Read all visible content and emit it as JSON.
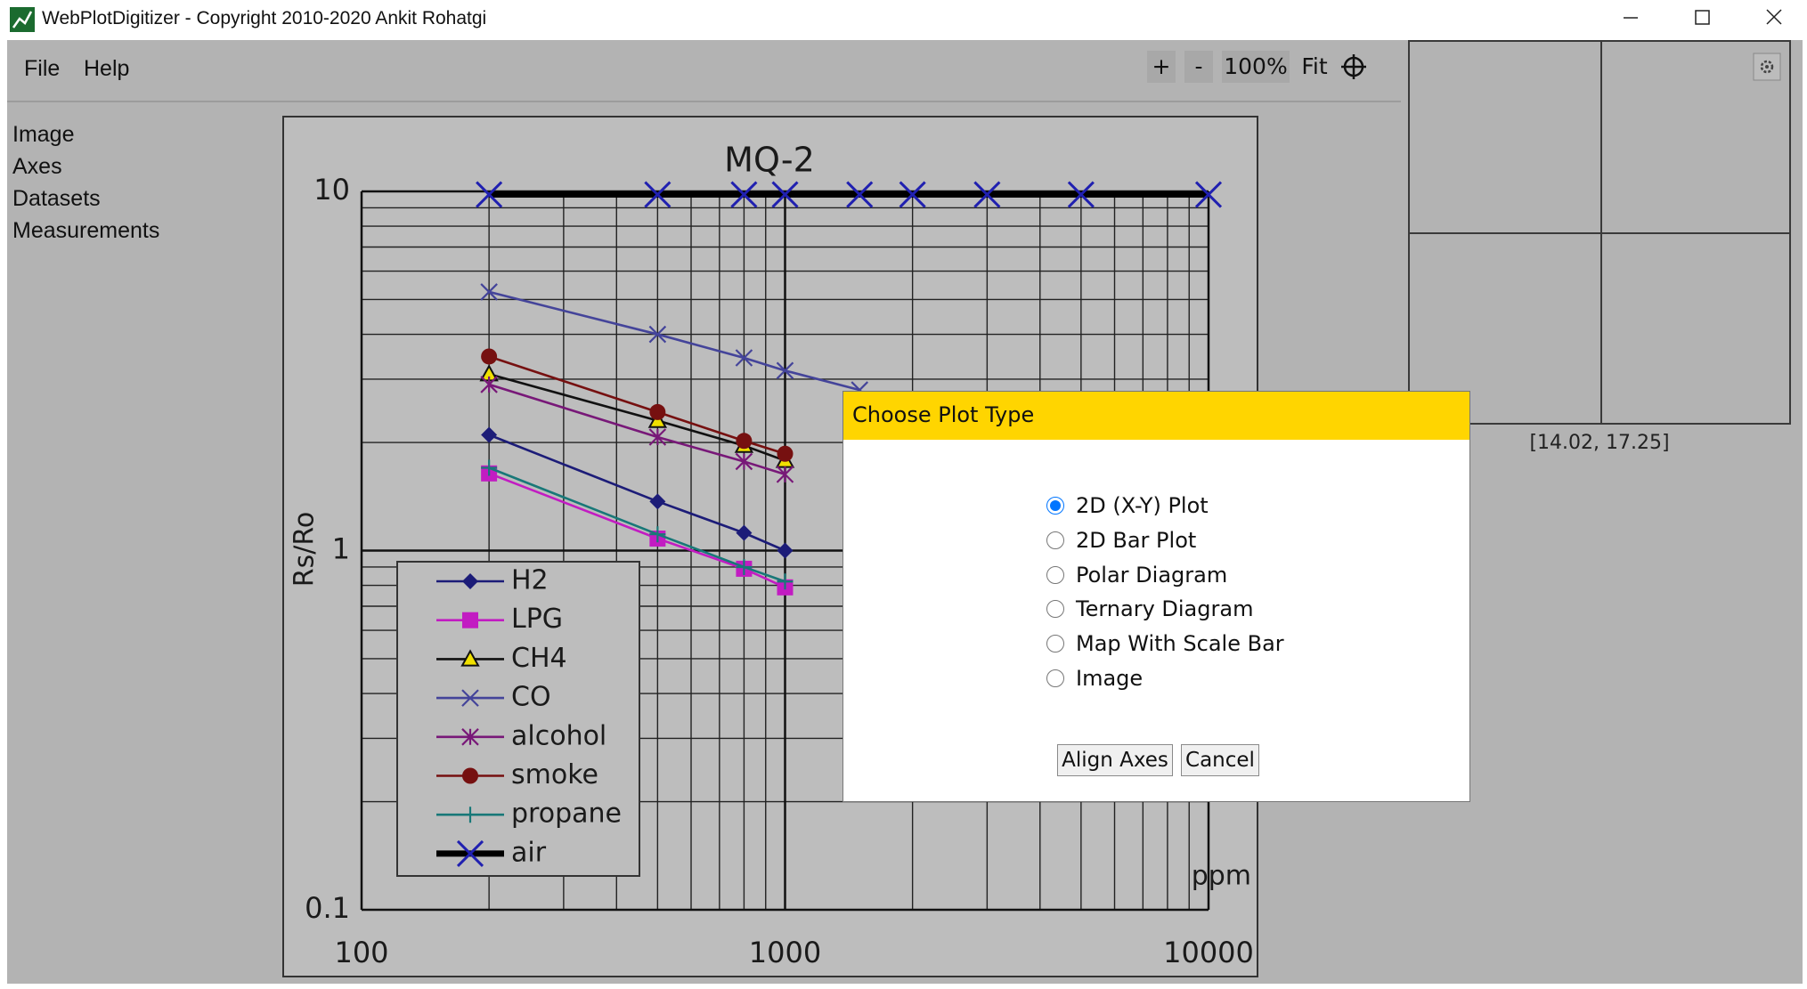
{
  "window": {
    "title": "WebPlotDigitizer - Copyright 2010-2020 Ankit Rohatgi"
  },
  "menu": [
    "File",
    "Help"
  ],
  "toolbar": [
    "+",
    "-",
    "100%",
    "Fit"
  ],
  "sidebar": [
    "Image",
    "Axes",
    "Datasets",
    "Measurements"
  ],
  "zoom_panel": {
    "coordinates": "[14.02, 17.25]"
  },
  "chart_data": {
    "type": "line",
    "title": "MQ-2",
    "y_label": "Rs/Ro",
    "x_label": "ppm",
    "xlog": true,
    "ylog": true,
    "grid": true,
    "xlim": [
      100,
      10000
    ],
    "xticks": [
      100,
      1000,
      10000
    ],
    "ylim": [
      0.1,
      10
    ],
    "yticks": [
      0.1,
      1,
      10
    ],
    "x": [
      200,
      500,
      800,
      1000,
      1500,
      2000,
      3000,
      5000,
      10000
    ],
    "series": [
      {
        "name": "H2",
        "color": "#1c1c78",
        "marker": "diamond",
        "values": [
          2.1,
          1.37,
          1.12,
          1.0,
          null,
          null,
          null,
          null,
          null
        ]
      },
      {
        "name": "LPG",
        "color": "#c21cc2",
        "marker": "square",
        "values": [
          1.64,
          1.08,
          0.89,
          0.79,
          null,
          null,
          null,
          null,
          null
        ]
      },
      {
        "name": "CH4",
        "color": "#111111",
        "marker": "triangle",
        "values": [
          3.1,
          2.3,
          1.96,
          1.78,
          null,
          null,
          null,
          null,
          null
        ]
      },
      {
        "name": "CO",
        "color": "#44449a",
        "marker": "x",
        "values": [
          5.25,
          4.0,
          3.44,
          3.17,
          2.8,
          null,
          null,
          null,
          null
        ]
      },
      {
        "name": "alcohol",
        "color": "#781878",
        "marker": "asterisk",
        "values": [
          2.9,
          2.07,
          1.77,
          1.63,
          null,
          null,
          null,
          null,
          null
        ]
      },
      {
        "name": "smoke",
        "color": "#761010",
        "marker": "circle",
        "values": [
          3.47,
          2.43,
          2.02,
          1.86,
          null,
          null,
          null,
          null,
          null
        ]
      },
      {
        "name": "propane",
        "color": "#187878",
        "marker": "plus",
        "values": [
          1.7,
          1.11,
          0.9,
          0.82,
          null,
          null,
          null,
          null,
          null
        ]
      },
      {
        "name": "air",
        "color": "#2020b0",
        "line_color": "#000000",
        "line_width": 7,
        "marker": "x",
        "values": [
          9.8,
          9.8,
          9.8,
          9.8,
          9.8,
          9.8,
          9.8,
          9.8,
          9.8
        ]
      }
    ]
  },
  "dialog": {
    "title": "Choose Plot Type",
    "options": [
      "2D (X-Y) Plot",
      "2D Bar Plot",
      "Polar Diagram",
      "Ternary Diagram",
      "Map With Scale Bar",
      "Image"
    ],
    "selected": 0,
    "buttons": [
      "Align Axes",
      "Cancel"
    ]
  }
}
